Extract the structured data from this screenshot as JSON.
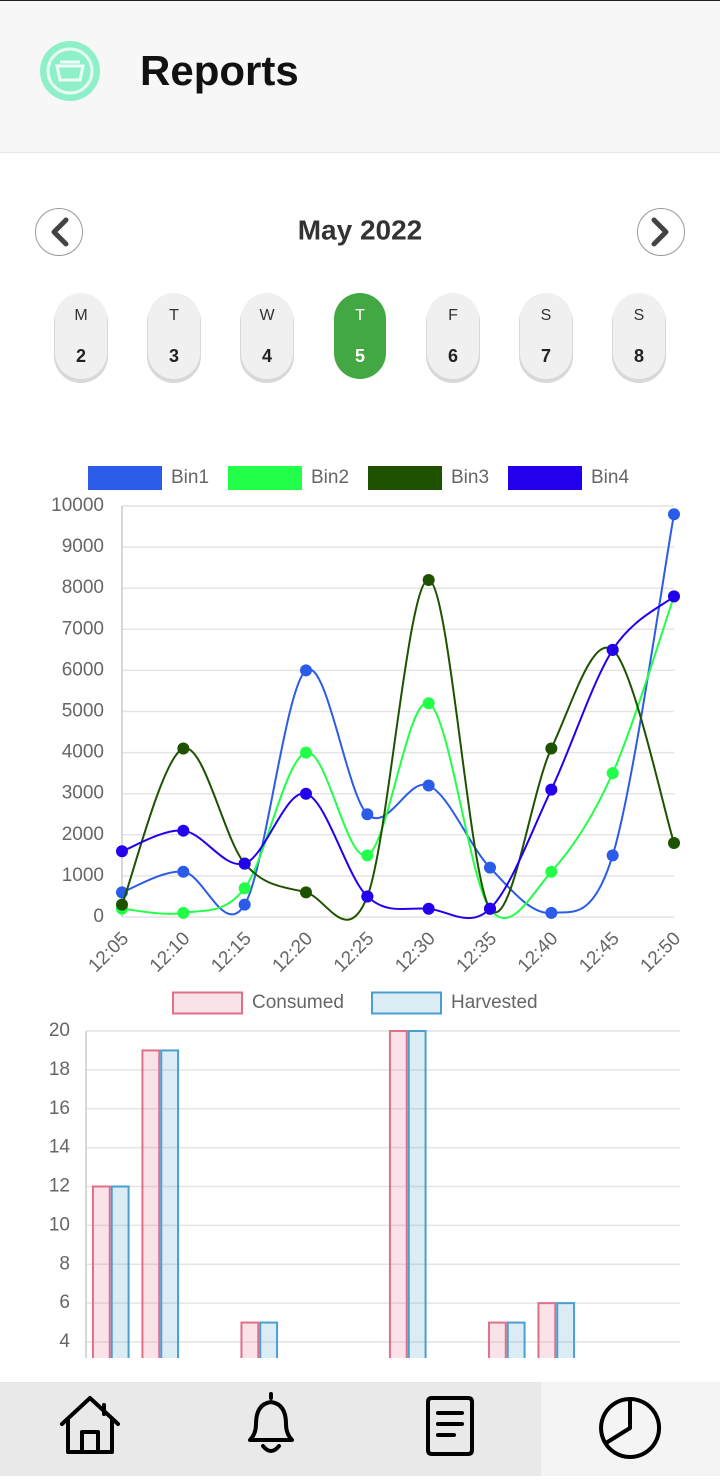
{
  "header": {
    "title": "Reports"
  },
  "calendar": {
    "month": "May 2022",
    "selected": 3,
    "days": [
      {
        "weekday": "M",
        "date": 2
      },
      {
        "weekday": "T",
        "date": 3
      },
      {
        "weekday": "W",
        "date": 4
      },
      {
        "weekday": "T",
        "date": 5
      },
      {
        "weekday": "F",
        "date": 6
      },
      {
        "weekday": "S",
        "date": 7
      },
      {
        "weekday": "S",
        "date": 8
      }
    ]
  },
  "chart_data": [
    {
      "type": "line",
      "categories": [
        "12:05",
        "12:10",
        "12:15",
        "12:20",
        "12:25",
        "12:30",
        "12:35",
        "12:40",
        "12:45",
        "12:50"
      ],
      "series": [
        {
          "name": "Bin1",
          "color": "#2b5ce8",
          "values": [
            600,
            1100,
            300,
            6000,
            2500,
            3200,
            1200,
            100,
            1500,
            9800
          ]
        },
        {
          "name": "Bin2",
          "color": "#22ff48",
          "values": [
            200,
            100,
            700,
            4000,
            1500,
            5200,
            200,
            1100,
            3500,
            7800
          ]
        },
        {
          "name": "Bin3",
          "color": "#1e5200",
          "values": [
            300,
            4100,
            1300,
            600,
            500,
            8200,
            200,
            4100,
            6500,
            1800
          ]
        },
        {
          "name": "Bin4",
          "color": "#2200ee",
          "values": [
            1600,
            2100,
            1300,
            3000,
            500,
            200,
            200,
            3100,
            6500,
            7800
          ]
        }
      ],
      "ylim": [
        0,
        10000
      ],
      "yticks": [
        0,
        1000,
        2000,
        3000,
        4000,
        5000,
        6000,
        7000,
        8000,
        9000,
        10000
      ],
      "grid": true,
      "legend": "top"
    },
    {
      "type": "bar",
      "categories": [
        null,
        null,
        null,
        null,
        null,
        null,
        null,
        null,
        null,
        null,
        null,
        null
      ],
      "series": [
        {
          "name": "Consumed",
          "color": "#e0708a",
          "values": [
            12,
            19,
            0,
            5,
            0,
            0,
            20,
            0,
            5,
            6,
            0,
            0
          ]
        },
        {
          "name": "Harvested",
          "color": "#4a9fcf",
          "values": [
            12,
            19,
            0,
            5,
            0,
            0,
            20,
            0,
            5,
            6,
            0,
            0
          ]
        }
      ],
      "ylim": [
        0,
        20
      ],
      "yticks": [
        4,
        6,
        8,
        10,
        12,
        14,
        16,
        18,
        20
      ],
      "grid": true,
      "legend": "top"
    }
  ]
}
